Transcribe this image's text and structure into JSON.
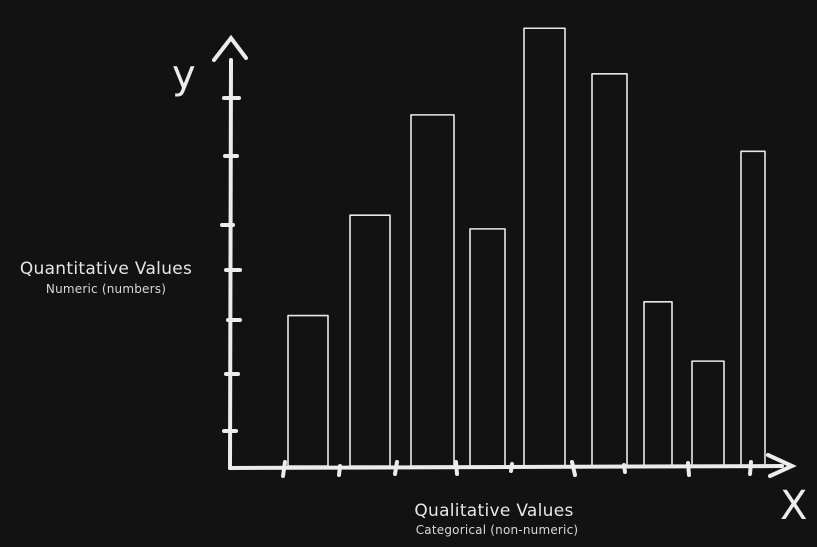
{
  "y_axis": {
    "letter": "y",
    "title": "Quantitative Values",
    "subtitle": "Numeric (numbers)"
  },
  "x_axis": {
    "letter": "X",
    "title": "Qualitative Values",
    "subtitle": "Categorical (non-numeric)"
  },
  "bars": [
    {
      "value": 0.33
    },
    {
      "value": 0.55
    },
    {
      "value": 0.77
    },
    {
      "value": 0.52
    },
    {
      "value": 0.96
    },
    {
      "value": 0.86
    },
    {
      "value": 0.36
    },
    {
      "value": 0.23
    },
    {
      "value": 0.69
    }
  ],
  "colors": {
    "background": "#121212",
    "stroke": "#e8e8e8"
  }
}
